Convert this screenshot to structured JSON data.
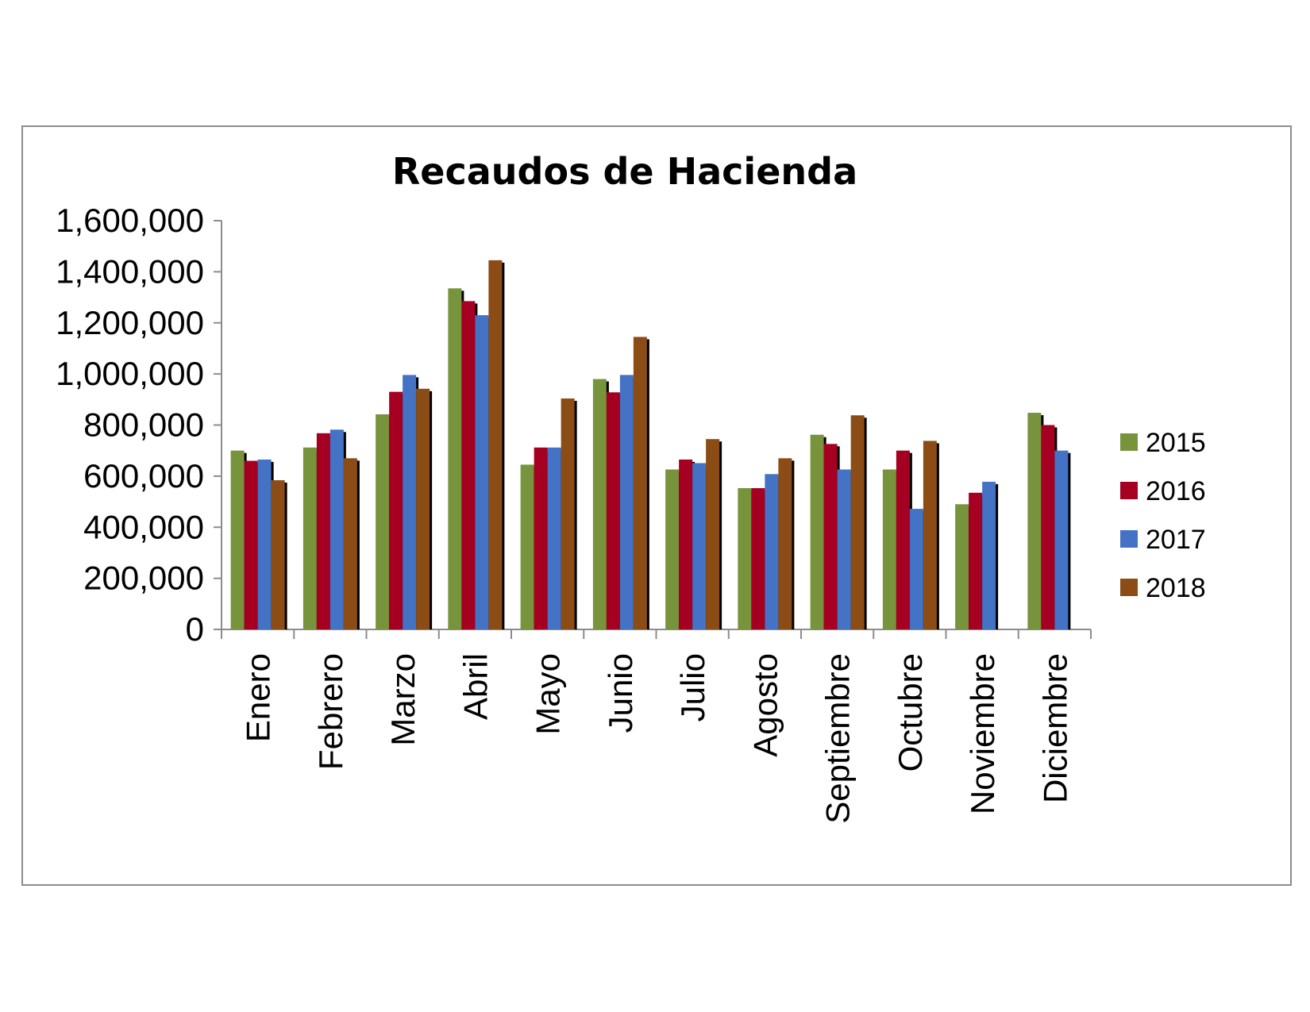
{
  "chart_data": {
    "type": "bar",
    "title": "Recaudos de Hacienda",
    "xlabel": "",
    "ylabel": "",
    "ylim": [
      0,
      1600000
    ],
    "yticks": [
      "0",
      "200,000",
      "400,000",
      "600,000",
      "800,000",
      "1,000,000",
      "1,200,000",
      "1,400,000",
      "1,600,000"
    ],
    "ytick_values": [
      0,
      200000,
      400000,
      600000,
      800000,
      1000000,
      1200000,
      1400000,
      1600000
    ],
    "categories": [
      "Enero",
      "Febrero",
      "Marzo",
      "Abril",
      "Mayo",
      "Junio",
      "Julio",
      "Agosto",
      "Septiembre",
      "Octubre",
      "Noviembre",
      "Diciembre"
    ],
    "series": [
      {
        "name": "2015",
        "color": "#77933C",
        "values": [
          700000,
          712000,
          842000,
          1335000,
          645000,
          980000,
          626000,
          553000,
          762000,
          626000,
          490000,
          848000
        ]
      },
      {
        "name": "2016",
        "color": "#A50021",
        "values": [
          660000,
          768000,
          930000,
          1285000,
          712000,
          928000,
          665000,
          553000,
          726000,
          700000,
          535000,
          800000
        ]
      },
      {
        "name": "2017",
        "color": "#4472C4",
        "values": [
          665000,
          782000,
          996000,
          1230000,
          712000,
          996000,
          651000,
          608000,
          626000,
          472000,
          578000,
          700000
        ]
      },
      {
        "name": "2018",
        "color": "#8B4C16",
        "values": [
          584000,
          670000,
          942000,
          1445000,
          904000,
          1145000,
          745000,
          670000,
          838000,
          738000,
          null,
          null
        ]
      }
    ],
    "legend_position": "right",
    "grid": false
  }
}
